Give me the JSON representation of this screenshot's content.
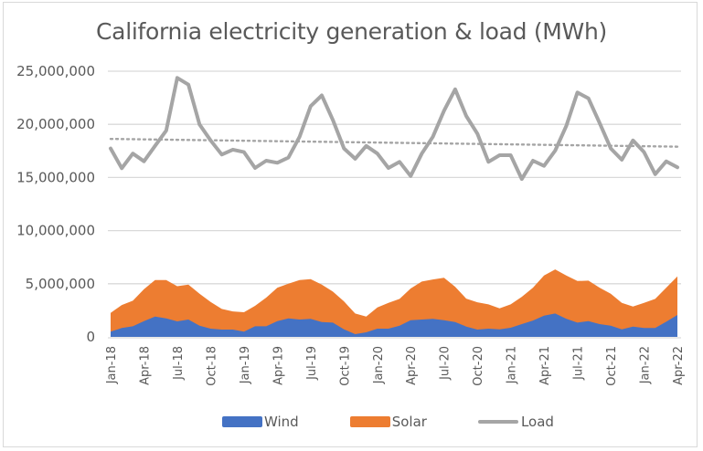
{
  "chart_data": {
    "type": "area",
    "title": "California electricity generation & load (MWh)",
    "xlabel": "",
    "ylabel": "",
    "ylim": [
      0,
      25000000
    ],
    "yticks": [
      0,
      5000000,
      10000000,
      15000000,
      20000000,
      25000000
    ],
    "ytick_labels": [
      "0",
      "5,000,000",
      "10,000,000",
      "15,000,000",
      "20,000,000",
      "25,000,000"
    ],
    "grid": true,
    "legend_position": "bottom",
    "x": [
      "Jan-18",
      "Feb-18",
      "Mar-18",
      "Apr-18",
      "May-18",
      "Jun-18",
      "Jul-18",
      "Aug-18",
      "Sep-18",
      "Oct-18",
      "Nov-18",
      "Dec-18",
      "Jan-19",
      "Feb-19",
      "Mar-19",
      "Apr-19",
      "May-19",
      "Jun-19",
      "Jul-19",
      "Aug-19",
      "Sep-19",
      "Oct-19",
      "Nov-19",
      "Dec-19",
      "Jan-20",
      "Feb-20",
      "Mar-20",
      "Apr-20",
      "May-20",
      "Jun-20",
      "Jul-20",
      "Aug-20",
      "Sep-20",
      "Oct-20",
      "Nov-20",
      "Dec-20",
      "Jan-21",
      "Feb-21",
      "Mar-21",
      "Apr-21",
      "May-21",
      "Jun-21",
      "Jul-21",
      "Aug-21",
      "Sep-21",
      "Oct-21",
      "Nov-21",
      "Dec-21",
      "Jan-22",
      "Feb-22",
      "Mar-22",
      "Apr-22"
    ],
    "xtick_labels": [
      "Jan-18",
      "Apr-18",
      "Jul-18",
      "Oct-18",
      "Jan-19",
      "Apr-19",
      "Jul-19",
      "Oct-19",
      "Jan-20",
      "Apr-20",
      "Jul-20",
      "Oct-20",
      "Jan-21",
      "Apr-21",
      "Jul-21",
      "Oct-21",
      "Jan-22",
      "Apr-22"
    ],
    "series": [
      {
        "name": "Wind",
        "type": "stacked-area",
        "color": "#4472c4",
        "values": [
          490000,
          830000,
          1000000,
          1490000,
          1910000,
          1740000,
          1460000,
          1630000,
          1060000,
          770000,
          690000,
          690000,
          490000,
          1000000,
          1000000,
          1490000,
          1740000,
          1630000,
          1690000,
          1400000,
          1340000,
          710000,
          260000,
          430000,
          770000,
          770000,
          1060000,
          1570000,
          1630000,
          1690000,
          1570000,
          1400000,
          970000,
          690000,
          770000,
          710000,
          860000,
          1200000,
          1540000,
          2000000,
          2200000,
          1710000,
          1340000,
          1490000,
          1200000,
          1060000,
          710000,
          970000,
          830000,
          830000,
          1430000,
          2060000
        ]
      },
      {
        "name": "Solar",
        "type": "stacked-area",
        "color": "#ed7d31",
        "values": [
          1770000,
          2170000,
          2400000,
          3000000,
          3430000,
          3600000,
          3310000,
          3280000,
          3000000,
          2520000,
          1940000,
          1710000,
          1830000,
          1920000,
          2690000,
          3140000,
          3260000,
          3710000,
          3740000,
          3510000,
          2920000,
          2630000,
          1940000,
          1480000,
          2000000,
          2430000,
          2510000,
          2980000,
          3580000,
          3710000,
          4000000,
          3320000,
          2630000,
          2570000,
          2290000,
          1980000,
          2200000,
          2570000,
          3090000,
          3770000,
          4150000,
          4060000,
          3920000,
          3800000,
          3430000,
          3000000,
          2490000,
          1890000,
          2370000,
          2740000,
          3200000,
          3630000
        ]
      },
      {
        "name": "Load",
        "type": "line",
        "color": "#a5a5a5",
        "values": [
          17730000,
          15870000,
          17250000,
          16520000,
          17970000,
          19410000,
          24370000,
          23740000,
          19980000,
          18490000,
          17160000,
          17620000,
          17390000,
          15890000,
          16580000,
          16380000,
          16870000,
          18830000,
          21710000,
          22720000,
          20410000,
          17730000,
          16760000,
          17970000,
          17250000,
          15890000,
          16470000,
          15140000,
          17250000,
          18830000,
          21280000,
          23300000,
          20790000,
          19120000,
          16470000,
          17100000,
          17100000,
          14850000,
          16580000,
          16090000,
          17530000,
          19840000,
          23000000,
          22440000,
          20130000,
          17730000,
          16670000,
          18490000,
          17390000,
          15310000,
          16520000,
          15950000
        ]
      }
    ],
    "trendline": {
      "series": "Load",
      "type": "linear",
      "style": "dotted",
      "color": "#a5a5a5",
      "start": 18630000,
      "end": 17900000
    }
  },
  "legend": {
    "items": [
      {
        "label": "Wind",
        "color": "#4472c4"
      },
      {
        "label": "Solar",
        "color": "#ed7d31"
      },
      {
        "label": "Load",
        "color": "#a5a5a5"
      }
    ]
  }
}
